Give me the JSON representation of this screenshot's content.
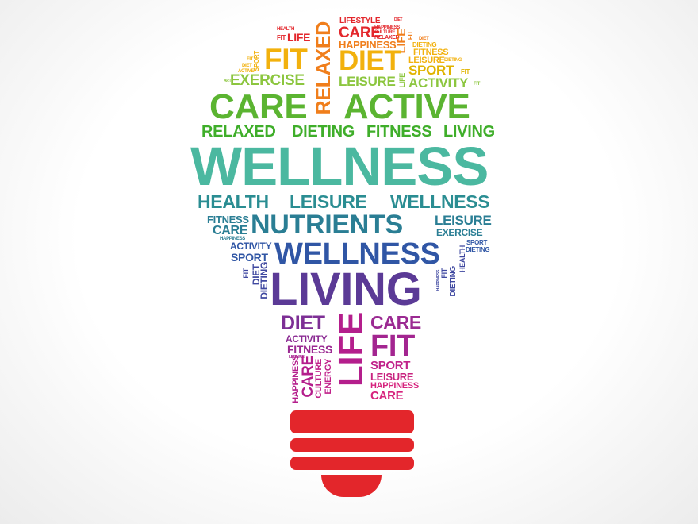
{
  "words": {
    "lifestyle": "LIFESTYLE",
    "diet_s": "DIET",
    "happiness_s": "HAPPINESS",
    "culture_s": "CULTURE",
    "care_top": "CARE",
    "relaxed_s": "RELAXED",
    "relaxed_big": "RELAXED",
    "health_s": "HEALTH",
    "life_top": "LIFE",
    "life_v": "LIFE",
    "fit_v": "FIT",
    "diet_tiny": "DIET",
    "dieting_s": "DIETING",
    "happiness_top": "HAPPINESS",
    "fit_big": "FIT",
    "diet_big": "DIET",
    "fitness_s": "FITNESS",
    "fit_tiny": "FIT",
    "diet_tiny2": "DIET",
    "active_tiny": "ACTIVE",
    "sport_v": "SPORT",
    "leisure_s": "LEISURE",
    "dieting_s2": "DIETING",
    "sport_m": "SPORT",
    "fit_tiny2": "FIT",
    "art_tiny": "ART",
    "exercise": "EXERCISE",
    "leisure_m": "LEISURE",
    "life_v2": "LIFE",
    "activity_m": "ACTIVITY",
    "fit_tiny3": "FIT",
    "care_big": "CARE",
    "active_big": "ACTIVE",
    "relaxed_row": "RELAXED",
    "dieting_row": "DIETING",
    "fitness_row": "FITNESS",
    "living_row": "LIVING",
    "wellness_big": "WELLNESS",
    "health_row": "HEALTH",
    "leisure_row": "LEISURE",
    "wellness_row": "WELLNESS",
    "fitness_l": "FITNESS",
    "care_l": "CARE",
    "happiness_l": "HAPPINESS",
    "nutrients": "NUTRIENTS",
    "leisure_r": "LEISURE",
    "exercise_r": "EXERCISE",
    "activity_l": "ACTIVITY",
    "sport_l": "SPORT",
    "wellness_mid": "WELLNESS",
    "sport_r": "SPORT",
    "dieting_r": "DIETING",
    "fit_vl": "FIT",
    "diet_vl": "DIET",
    "dieting_vl": "DIETING",
    "living_big": "LIVING",
    "health_vr": "HEALTH",
    "dieting_vr": "DIETING",
    "fit_vr": "FIT",
    "happiness_vr": "HAPPINESS",
    "diet_low": "DIET",
    "life_big_v": "LIFE",
    "care_low": "CARE",
    "activity_low": "ACTIVITY",
    "fit_low": "FIT",
    "fitness_low": "FITNESS",
    "leisure_tiny": "LEISURE",
    "happiness_v": "HAPPINESS",
    "care_v": "CARE",
    "culture_v": "CULTURE",
    "energy_v": "ENERGY",
    "sport_low": "SPORT",
    "leisure_low": "LEISURE",
    "happiness_low": "HAPPINESS",
    "care_bottom": "CARE"
  },
  "colors": {
    "red": "#e3262b",
    "orange": "#f07e1b",
    "yellow": "#f2b10d",
    "lime": "#8cc63f",
    "green": "#3fae2a",
    "teal": "#4bb8a0",
    "petrol": "#2a8d92",
    "blue": "#3056a5",
    "indigo": "#5b3a96",
    "purple": "#7d2f95",
    "magenta": "#b41e8c",
    "pink": "#d6237d",
    "background": "#ffffff"
  }
}
